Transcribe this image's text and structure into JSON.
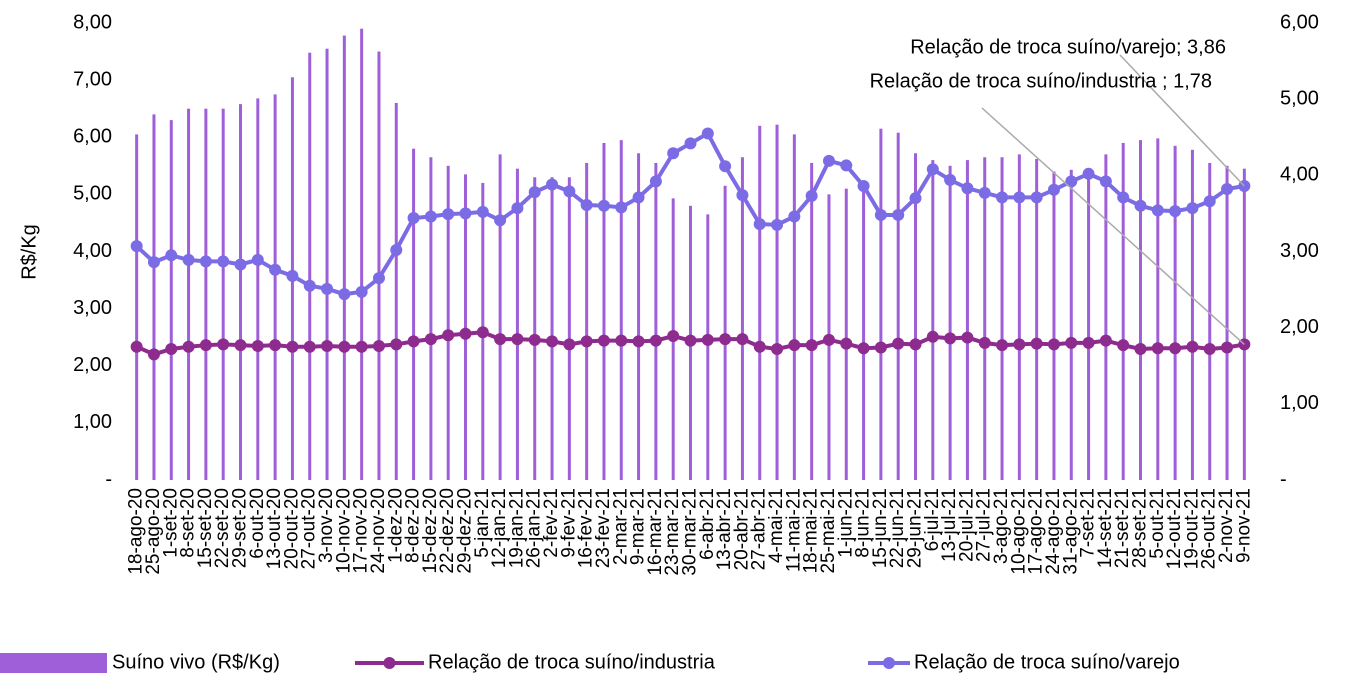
{
  "chart_data": {
    "type": "bar-line",
    "y_label": "R$/Kg",
    "categories": [
      "18-ago-20",
      "25-ago-20",
      "1-set-20",
      "8-set-20",
      "15-set-20",
      "22-set-20",
      "29-set-20",
      "6-out-20",
      "13-out-20",
      "20-out-20",
      "27-out-20",
      "3-nov-20",
      "10-nov-20",
      "17-nov-20",
      "24-nov-20",
      "1-dez-20",
      "8-dez-20",
      "15-dez-20",
      "22-dez-20",
      "29-dez-20",
      "5-jan-21",
      "12-jan-21",
      "19-jan-21",
      "26-jan-21",
      "2-fev-21",
      "9-fev-21",
      "16-fev-21",
      "23-fev-21",
      "2-mar-21",
      "9-mar-21",
      "16-mar-21",
      "23-mar-21",
      "30-mar-21",
      "6-abr-21",
      "13-abr-21",
      "20-abr-21",
      "27-abr-21",
      "4-mai-21",
      "11-mai-21",
      "18-mai-21",
      "25-mai-21",
      "1-jun-21",
      "8-jun-21",
      "15-jun-21",
      "22-jun-21",
      "29-jun-21",
      "6-jul-21",
      "13-jul-21",
      "20-jul-21",
      "27-jul-21",
      "3-ago-21",
      "10-ago-21",
      "17-ago-21",
      "24-ago-21",
      "31-ago-21",
      "7-set-21",
      "14-set-21",
      "21-set-21",
      "28-set-21",
      "5-out-21",
      "12-out-21",
      "19-out-21",
      "26-out-21",
      "2-nov-21",
      "9-nov-21"
    ],
    "series": [
      {
        "name": "Suíno vivo (R$/Kg)",
        "kind": "bar",
        "color": "#9e5fd8",
        "values": [
          6.05,
          6.4,
          6.3,
          6.5,
          6.5,
          6.5,
          6.58,
          6.68,
          6.75,
          7.05,
          7.48,
          7.55,
          7.78,
          7.9,
          7.5,
          6.6,
          5.8,
          5.65,
          5.5,
          5.35,
          5.2,
          5.7,
          5.45,
          5.3,
          5.3,
          5.3,
          5.55,
          5.9,
          5.95,
          5.72,
          5.55,
          4.93,
          4.8,
          4.65,
          5.15,
          5.65,
          6.2,
          6.22,
          6.05,
          5.55,
          5.0,
          5.1,
          5.15,
          6.15,
          6.08,
          5.72,
          5.6,
          5.5,
          5.6,
          5.65,
          5.65,
          5.7,
          5.62,
          5.4,
          5.43,
          5.43,
          5.7,
          5.9,
          5.95,
          5.98,
          5.85,
          5.78,
          5.55,
          5.5,
          5.45
        ]
      },
      {
        "name": "Relação de troca suíno/industria",
        "kind": "line",
        "axis": "y2",
        "color": "#8e2b8e",
        "values": [
          1.75,
          1.65,
          1.72,
          1.75,
          1.77,
          1.78,
          1.77,
          1.76,
          1.77,
          1.75,
          1.75,
          1.76,
          1.75,
          1.75,
          1.76,
          1.78,
          1.82,
          1.85,
          1.9,
          1.92,
          1.94,
          1.85,
          1.85,
          1.84,
          1.82,
          1.78,
          1.82,
          1.83,
          1.83,
          1.82,
          1.83,
          1.89,
          1.83,
          1.84,
          1.85,
          1.85,
          1.75,
          1.72,
          1.77,
          1.77,
          1.84,
          1.79,
          1.73,
          1.74,
          1.79,
          1.78,
          1.88,
          1.86,
          1.87,
          1.8,
          1.77,
          1.78,
          1.79,
          1.78,
          1.8,
          1.8,
          1.83,
          1.77,
          1.72,
          1.73,
          1.73,
          1.75,
          1.72,
          1.74,
          1.78
        ]
      },
      {
        "name": "Relação de troca suíno/varejo",
        "kind": "line",
        "axis": "y2",
        "color": "#7b6ce6",
        "values": [
          3.07,
          2.86,
          2.95,
          2.89,
          2.87,
          2.87,
          2.83,
          2.89,
          2.76,
          2.68,
          2.55,
          2.51,
          2.44,
          2.47,
          2.65,
          3.02,
          3.44,
          3.46,
          3.49,
          3.5,
          3.52,
          3.41,
          3.57,
          3.78,
          3.88,
          3.79,
          3.61,
          3.6,
          3.58,
          3.71,
          3.92,
          4.29,
          4.42,
          4.55,
          4.12,
          3.74,
          3.36,
          3.35,
          3.46,
          3.73,
          4.19,
          4.13,
          3.86,
          3.48,
          3.48,
          3.7,
          4.08,
          3.94,
          3.83,
          3.77,
          3.71,
          3.71,
          3.71,
          3.81,
          3.92,
          4.02,
          3.92,
          3.71,
          3.6,
          3.54,
          3.53,
          3.57,
          3.66,
          3.82,
          3.86
        ]
      }
    ],
    "annotations": [
      "Relação de troca suíno/varejo; 3,86",
      "Relação de troca suíno/industria ; 1,78"
    ],
    "ylim": [
      0,
      8
    ],
    "yticks": [
      {
        "value": 0,
        "label": "-"
      },
      {
        "value": 1,
        "label": "1,00"
      },
      {
        "value": 2,
        "label": "2,00"
      },
      {
        "value": 3,
        "label": "3,00"
      },
      {
        "value": 4,
        "label": "4,00"
      },
      {
        "value": 5,
        "label": "5,00"
      },
      {
        "value": 6,
        "label": "6,00"
      },
      {
        "value": 7,
        "label": "7,00"
      },
      {
        "value": 8,
        "label": "8,00"
      }
    ],
    "y2lim": [
      0,
      6
    ],
    "y2ticks": [
      {
        "value": 0,
        "label": "-"
      },
      {
        "value": 1,
        "label": "1,00"
      },
      {
        "value": 2,
        "label": "2,00"
      },
      {
        "value": 3,
        "label": "3,00"
      },
      {
        "value": 4,
        "label": "4,00"
      },
      {
        "value": 5,
        "label": "5,00"
      },
      {
        "value": 6,
        "label": "6,00"
      }
    ],
    "legend": "bottom"
  }
}
